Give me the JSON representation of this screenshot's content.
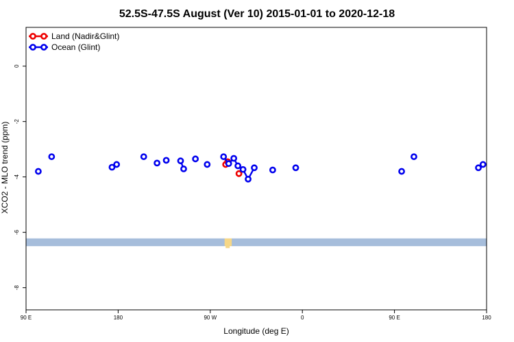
{
  "chart_data": {
    "type": "scatter",
    "title": "52.5S-47.5S August (Ver 10)   2015-01-01 to 2020-12-18",
    "xlabel": "Longitude (deg E)",
    "ylabel": "XCO2 - MLO trend (ppm)",
    "xlim": [
      90,
      540
    ],
    "ylim": [
      -8.8,
      1.4
    ],
    "x_ticks": [
      {
        "value": 90,
        "label": "90 E"
      },
      {
        "value": 180,
        "label": "180"
      },
      {
        "value": 270,
        "label": "90 W"
      },
      {
        "value": 360,
        "label": "0"
      },
      {
        "value": 450,
        "label": "90 E"
      },
      {
        "value": 540,
        "label": "180"
      }
    ],
    "y_ticks": [
      {
        "value": 0,
        "label": "0"
      },
      {
        "value": -2,
        "label": "-2"
      },
      {
        "value": -4,
        "label": "-4"
      },
      {
        "value": -6,
        "label": "-6"
      },
      {
        "value": -8,
        "label": "-8"
      }
    ],
    "legend_position": "top-left",
    "series": [
      {
        "name": "Land (Nadir&Glint)",
        "color": "#ee0000",
        "connected": true,
        "points": [
          {
            "x": 285.0,
            "y": -3.55
          },
          {
            "x": 287.0,
            "y": -3.45
          },
          {
            "x": 298.0,
            "y": -3.88
          }
        ]
      },
      {
        "name": "Ocean (Glint)",
        "color": "#0000ee",
        "connected": true,
        "points": [
          {
            "x": 102.0,
            "y": -3.8
          },
          {
            "x": 115.0,
            "y": -3.27
          },
          {
            "x": 174.0,
            "y": -3.65
          },
          {
            "x": 178.5,
            "y": -3.55
          },
          {
            "x": 205.0,
            "y": -3.27
          },
          {
            "x": 218.0,
            "y": -3.5
          },
          {
            "x": 227.0,
            "y": -3.4
          },
          {
            "x": 241.0,
            "y": -3.42
          },
          {
            "x": 244.0,
            "y": -3.71
          },
          {
            "x": 255.5,
            "y": -3.35
          },
          {
            "x": 267.0,
            "y": -3.55
          },
          {
            "x": 283.0,
            "y": -3.27
          },
          {
            "x": 288.0,
            "y": -3.52
          },
          {
            "x": 293.0,
            "y": -3.33
          },
          {
            "x": 297.0,
            "y": -3.6
          },
          {
            "x": 302.0,
            "y": -3.73
          },
          {
            "x": 307.0,
            "y": -4.08
          },
          {
            "x": 313.0,
            "y": -3.67
          },
          {
            "x": 331.0,
            "y": -3.75
          },
          {
            "x": 353.5,
            "y": -3.67
          },
          {
            "x": 457.0,
            "y": -3.8
          },
          {
            "x": 469.0,
            "y": -3.27
          },
          {
            "x": 532.0,
            "y": -3.67
          },
          {
            "x": 536.5,
            "y": -3.55
          }
        ]
      }
    ],
    "bands": [
      {
        "type": "rect",
        "x0": 90,
        "x1": 540,
        "y0": -6.5,
        "y1": -6.22,
        "color": "#a6bddb"
      },
      {
        "type": "rect",
        "x0": 284,
        "x1": 291,
        "y0": -6.5,
        "y1": -6.22,
        "color": "#f6d787"
      },
      {
        "type": "rect",
        "x0": 285,
        "x1": 289,
        "y0": -6.57,
        "y1": -6.5,
        "color": "#f6d787"
      }
    ]
  }
}
